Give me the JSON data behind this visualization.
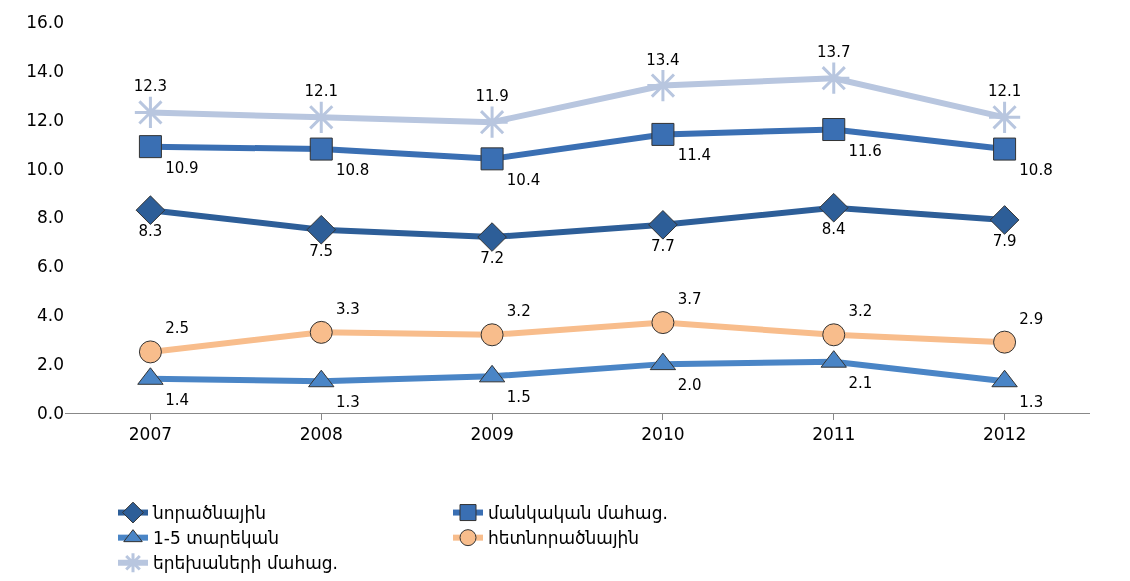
{
  "chart_data": {
    "type": "line",
    "categories": [
      "2007",
      "2008",
      "2009",
      "2010",
      "2011",
      "2012"
    ],
    "series": [
      {
        "name": "նորածնային",
        "color": "#2d5e98",
        "marker": "diamond",
        "values": [
          8.3,
          7.5,
          7.2,
          7.7,
          8.4,
          7.9
        ],
        "value_labels": [
          "8.3",
          "7.5",
          "7.2",
          "7.7",
          "8.4",
          "7.9"
        ]
      },
      {
        "name": "մանկական մահաց.",
        "color": "#3a6fb3",
        "marker": "square",
        "values": [
          10.9,
          10.8,
          10.4,
          11.4,
          11.6,
          10.8
        ],
        "value_labels": [
          "10.9",
          "10.8",
          "10.4",
          "11.4",
          "11.6",
          "10.8"
        ]
      },
      {
        "name": "1-5 տարեկան",
        "color": "#4a85c6",
        "marker": "triangle",
        "values": [
          1.4,
          1.3,
          1.5,
          2.0,
          2.1,
          1.3
        ],
        "value_labels": [
          "1.4",
          "1.3",
          "1.5",
          "2.0",
          "2.1",
          "1.3"
        ]
      },
      {
        "name": "հետնորածնային",
        "color": "#f8bd8c",
        "marker": "circle",
        "values": [
          2.5,
          3.3,
          3.2,
          3.7,
          3.2,
          2.9
        ],
        "value_labels": [
          "2.5",
          "3.3",
          "3.2",
          "3.7",
          "3.2",
          "2.9"
        ]
      },
      {
        "name": "երեխաների մահաց.",
        "color": "#b8c6df",
        "marker": "cross",
        "values": [
          12.3,
          12.1,
          11.9,
          13.4,
          13.7,
          12.1
        ],
        "value_labels": [
          "12.3",
          "12.1",
          "11.9",
          "13.4",
          "13.7",
          "12.1"
        ]
      }
    ],
    "ylim": [
      0,
      16
    ],
    "yticks": [
      {
        "value": 0,
        "label": "0.0"
      },
      {
        "value": 2,
        "label": "2.0"
      },
      {
        "value": 4,
        "label": "4.0"
      },
      {
        "value": 6,
        "label": "6.0"
      },
      {
        "value": 8,
        "label": "8.0"
      },
      {
        "value": 10,
        "label": "10.0"
      },
      {
        "value": 12,
        "label": "12.0"
      },
      {
        "value": 14,
        "label": "14.0"
      },
      {
        "value": 16,
        "label": "16.0"
      }
    ],
    "grid": false,
    "legend": "bottom"
  }
}
